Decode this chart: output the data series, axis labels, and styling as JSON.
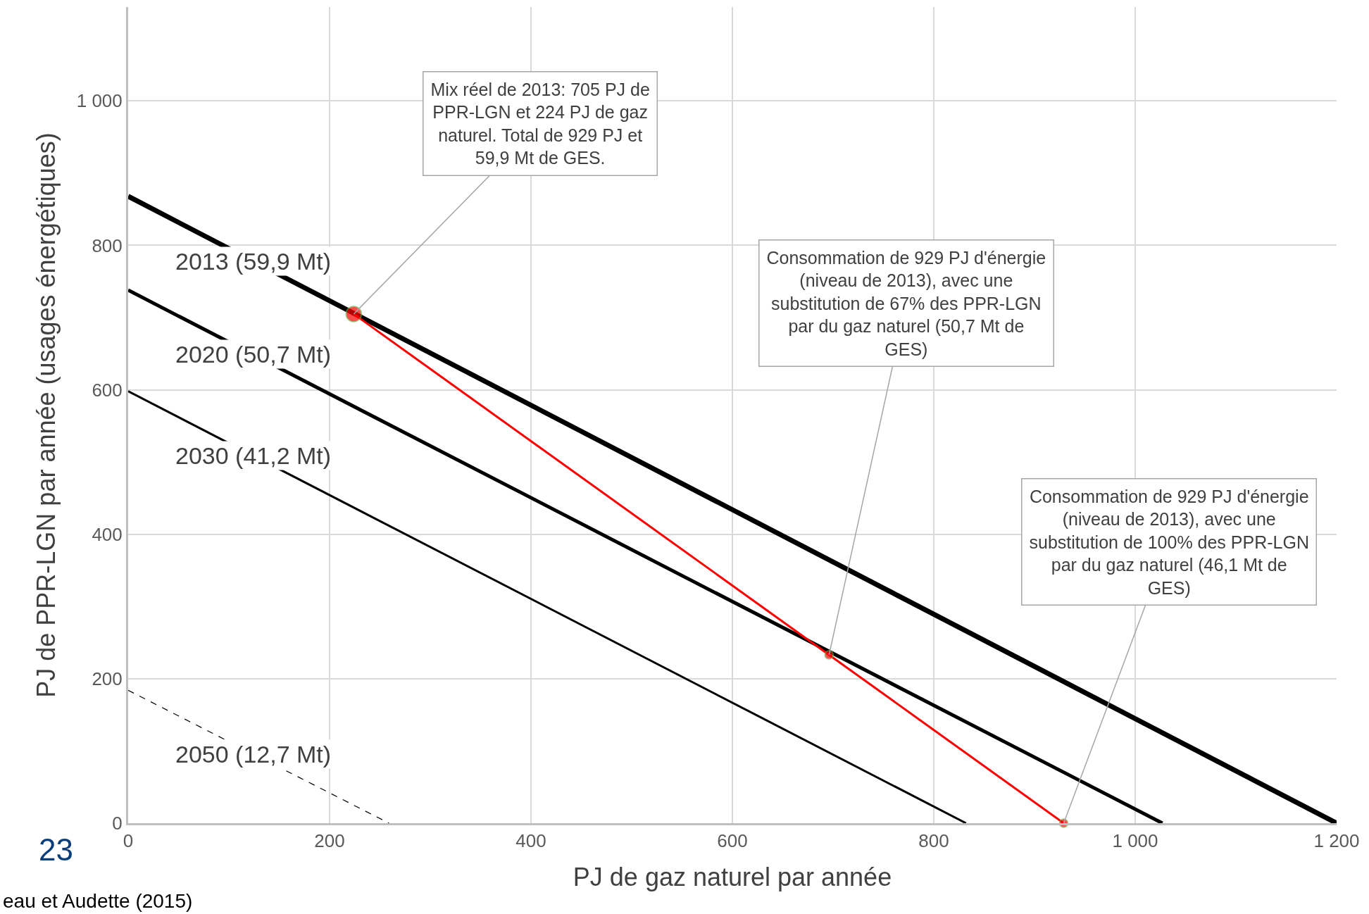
{
  "chart_data": {
    "type": "line",
    "xlabel": "PJ de gaz naturel par année",
    "ylabel": "PJ de PPR-LGN par année (usages énergétiques)",
    "xlim": [
      0,
      1200
    ],
    "ylim": [
      0,
      1130
    ],
    "xticks": [
      0,
      200,
      400,
      600,
      800,
      {
        "value": 1000,
        "label": "1 000"
      },
      {
        "value": 1200,
        "label": "1 200"
      }
    ],
    "yticks": [
      0,
      200,
      400,
      600,
      800,
      {
        "value": 1000,
        "label": "1 000"
      }
    ],
    "grid": true,
    "legend": false,
    "series": [
      {
        "name": "2013 (59,9 Mt)",
        "color": "#000000",
        "x": [
          0,
          1200
        ],
        "values": [
          868,
          0
        ],
        "line_style": "solid"
      },
      {
        "name": "2020 (50,7 Mt)",
        "color": "#000000",
        "x": [
          0,
          1027
        ],
        "values": [
          738,
          0
        ],
        "line_style": "solid"
      },
      {
        "name": "2030 (41,2 Mt)",
        "color": "#000000",
        "x": [
          0,
          832
        ],
        "values": [
          598,
          0
        ],
        "line_style": "solid"
      },
      {
        "name": "2050 (12,7 Mt)",
        "color": "#000000",
        "x": [
          0,
          259
        ],
        "values": [
          184,
          0
        ],
        "line_style": "dashed"
      },
      {
        "color": "#ff0000",
        "x": [
          224,
          696,
          929
        ],
        "values": [
          705,
          233,
          0
        ],
        "line_style": "solid",
        "marker": "circle"
      }
    ],
    "annotations": [
      {
        "text": "Mix réel de 2013: 705 PJ de PPR-LGN et 224 PJ de gaz naturel. Total de 929 PJ et 59,9 Mt de GES.",
        "x": 224,
        "y": 705
      },
      {
        "text": "Consommation de 929 PJ d'énergie (niveau de 2013), avec une substitution de 67% des PPR-LGN par du gaz naturel (50,7 Mt de GES)",
        "x": 696,
        "y": 233
      },
      {
        "text": "Consommation de 929 PJ d'énergie (niveau de 2013), avec une substitution de 100% des PPR-LGN par du gaz naturel (46,1 Mt de GES)",
        "x": 929,
        "y": 0
      },
      "23",
      "eau et Audette (2015)"
    ]
  }
}
